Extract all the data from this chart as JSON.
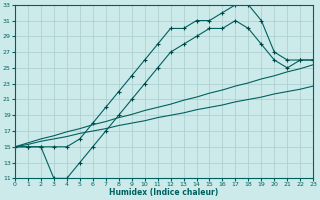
{
  "xlabel": "Humidex (Indice chaleur)",
  "ylabel": "",
  "bg_color": "#cceaea",
  "grid_color": "#aacccc",
  "line_color": "#006060",
  "marker_color": "#004444",
  "xlim": [
    0,
    23
  ],
  "ylim": [
    11,
    33
  ],
  "xticks": [
    0,
    1,
    2,
    3,
    4,
    5,
    6,
    7,
    8,
    9,
    10,
    11,
    12,
    13,
    14,
    15,
    16,
    17,
    18,
    19,
    20,
    21,
    22,
    23
  ],
  "yticks": [
    11,
    13,
    15,
    17,
    19,
    21,
    23,
    25,
    27,
    29,
    31,
    33
  ],
  "hours": [
    0,
    1,
    2,
    3,
    4,
    5,
    6,
    7,
    8,
    9,
    10,
    11,
    12,
    13,
    14,
    15,
    16,
    17,
    18,
    19,
    20,
    21,
    22,
    23
  ],
  "line_top": [
    15,
    15,
    15,
    15,
    15,
    16,
    18,
    20,
    22,
    24,
    26,
    28,
    30,
    30,
    31,
    31,
    32,
    33,
    33,
    31,
    27,
    26,
    26,
    26
  ],
  "line_mid": [
    15,
    15,
    15,
    11,
    11,
    13,
    15,
    17,
    19,
    21,
    23,
    25,
    27,
    28,
    29,
    30,
    30,
    31,
    30,
    28,
    26,
    25,
    26,
    26
  ],
  "line_bot1": [
    15,
    15.5,
    16,
    16.4,
    16.9,
    17.3,
    17.8,
    18.2,
    18.7,
    19.1,
    19.6,
    20,
    20.4,
    20.9,
    21.3,
    21.8,
    22.2,
    22.7,
    23.1,
    23.6,
    24,
    24.5,
    24.9,
    25.4
  ],
  "line_bot2": [
    15,
    15.3,
    15.7,
    16,
    16.3,
    16.7,
    17,
    17.3,
    17.7,
    18,
    18.3,
    18.7,
    19,
    19.3,
    19.7,
    20,
    20.3,
    20.7,
    21,
    21.3,
    21.7,
    22,
    22.3,
    22.7
  ]
}
